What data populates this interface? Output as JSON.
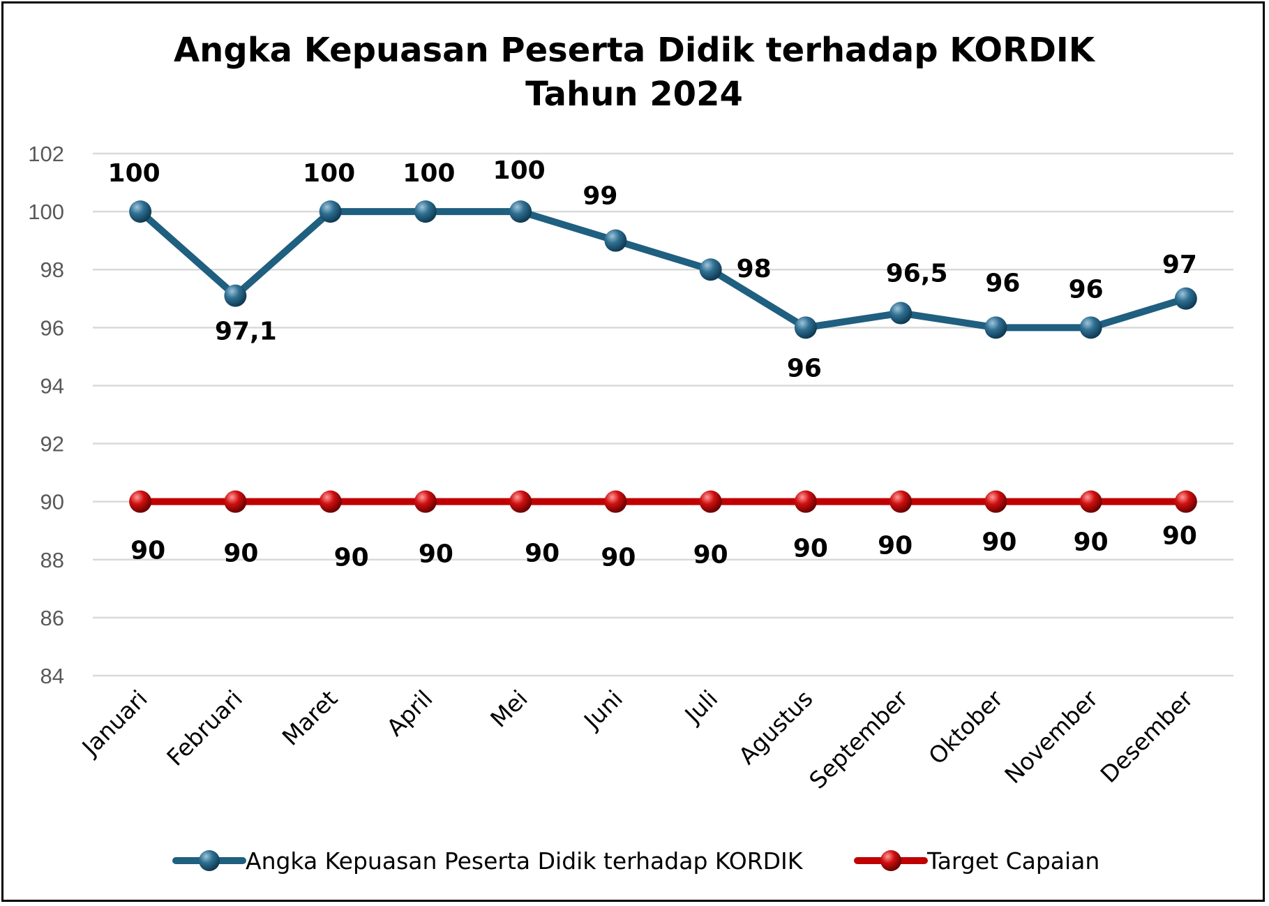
{
  "chart_data": {
    "type": "line",
    "title": "Angka Kepuasan Peserta Didik terhadap KORDIK",
    "subtitle": "Tahun 2024",
    "xlabel": "",
    "ylabel": "",
    "ylim": [
      84,
      102
    ],
    "yticks": [
      "84",
      "86",
      "88",
      "90",
      "92",
      "94",
      "96",
      "98",
      "100",
      "102"
    ],
    "grid": true,
    "legend_position": "bottom",
    "categories": [
      "Januari",
      "Februari",
      "Maret",
      "April",
      "Mei",
      "Juni",
      "Juli",
      "Agustus",
      "September",
      "Oktober",
      "November",
      "Desember"
    ],
    "series": [
      {
        "name": "Angka Kepuasan Peserta Didik terhadap KORDIK",
        "color": "#1f5f7f",
        "values": [
          100,
          97.1,
          100,
          100,
          100,
          99,
          98,
          96,
          96.5,
          96,
          96,
          97
        ],
        "labels": [
          "100",
          "97,1",
          "100",
          "100",
          "100",
          "99",
          "98",
          "96",
          "96,5",
          "96",
          "96",
          "97"
        ]
      },
      {
        "name": "Target Capaian",
        "color": "#c00000",
        "values": [
          90,
          90,
          90,
          90,
          90,
          90,
          90,
          90,
          90,
          90,
          90,
          90
        ],
        "labels": [
          "90",
          "90",
          "90",
          "90",
          "90",
          "90",
          "90",
          "90",
          "90",
          "90",
          "90",
          "90"
        ]
      }
    ]
  }
}
